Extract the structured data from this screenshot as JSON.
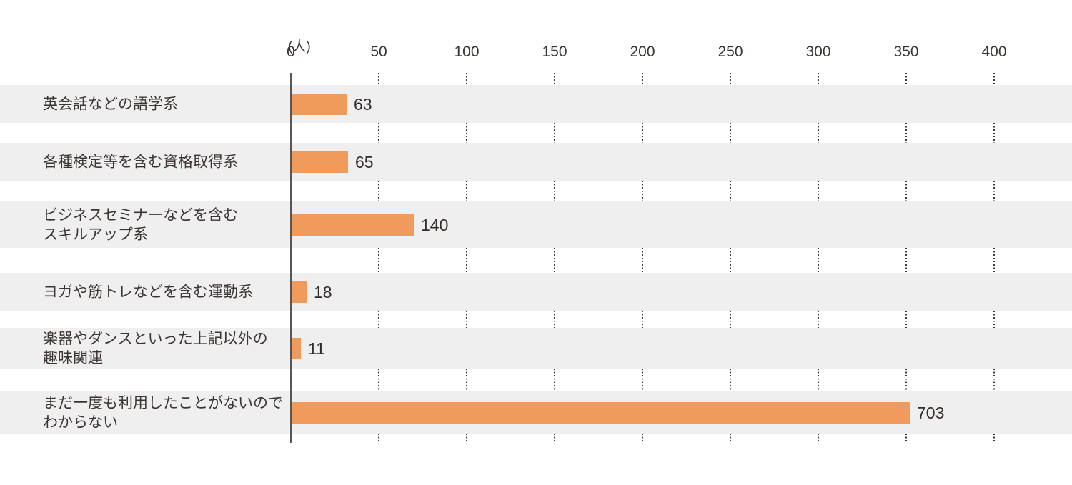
{
  "chart_data": {
    "type": "bar",
    "orientation": "horizontal",
    "title": "",
    "xlabel": "",
    "ylabel": "",
    "unit": "(人)",
    "categories": [
      "英会話などの語学系",
      "各種検定等を含む資格取得系",
      "ビジネスセミナーなどを含むスキルアップ系",
      "ヨガや筋トレなどを含む運動系",
      "楽器やダンスといった上記以外の趣味関連",
      "まだ一度も利用したことがないのでわからない"
    ],
    "values": [
      63,
      65,
      140,
      18,
      11,
      703
    ],
    "x_ticks": [
      0,
      50,
      100,
      150,
      200,
      250,
      300,
      350,
      400
    ],
    "xlim": [
      0,
      400
    ],
    "grid": "dotted-vertical",
    "legend": "none",
    "row_bands": true
  },
  "axis": {
    "unit_label": "(人)",
    "tick_labels": [
      "0",
      "50",
      "100",
      "150",
      "200",
      "250",
      "300",
      "350",
      "400"
    ]
  },
  "rows": [
    {
      "label_lines": [
        "英会話などの語学系"
      ],
      "value": 63,
      "value_label": "63"
    },
    {
      "label_lines": [
        "各種検定等を含む資格取得系"
      ],
      "value": 65,
      "value_label": "65"
    },
    {
      "label_lines": [
        "ビジネスセミナーなどを含む",
        "スキルアップ系"
      ],
      "value": 140,
      "value_label": "140"
    },
    {
      "label_lines": [
        "ヨガや筋トレなどを含む運動系"
      ],
      "value": 18,
      "value_label": "18"
    },
    {
      "label_lines": [
        "楽器やダンスといった上記以外の",
        "趣味関連"
      ],
      "value": 11,
      "value_label": "11"
    },
    {
      "label_lines": [
        "まだ一度も利用したことがないので",
        "わからない"
      ],
      "value": 703,
      "value_label": "703"
    }
  ],
  "colors": {
    "bar": "#F09A5C",
    "row_band": "#F0EFEF",
    "text": "#3B3533",
    "value_text": "#322D2B",
    "axis_line": "#5B5553",
    "grid_dot": "#3F3A37",
    "background": "#FFFFFF"
  }
}
